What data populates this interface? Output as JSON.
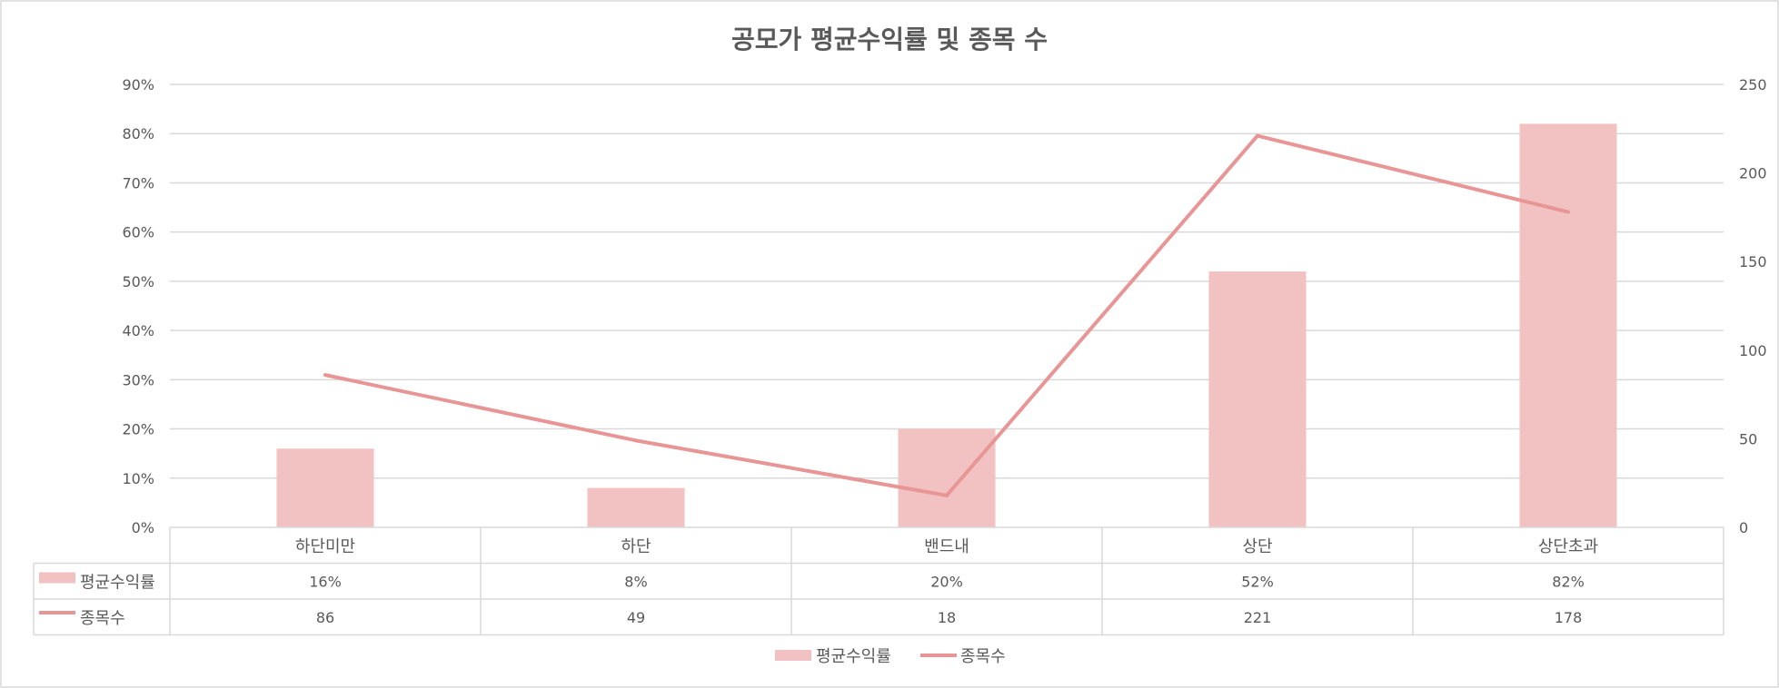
{
  "chart_data": {
    "type": "bar+line",
    "title": "공모가 평균수익률 및 종목 수",
    "categories": [
      "하단미만",
      "하단",
      "밴드내",
      "상단",
      "상단초과"
    ],
    "series": [
      {
        "name": "평균수익률",
        "kind": "bar",
        "axis": "left",
        "values": [
          0.16,
          0.08,
          0.2,
          0.52,
          0.82
        ],
        "labels": [
          "16%",
          "8%",
          "20%",
          "52%",
          "82%"
        ],
        "color": "#f2c1c1"
      },
      {
        "name": "종목수",
        "kind": "line",
        "axis": "right",
        "values": [
          86,
          49,
          18,
          221,
          178
        ],
        "labels": [
          "86",
          "49",
          "18",
          "221",
          "178"
        ],
        "color": "#e89595"
      }
    ],
    "y_left": {
      "min": 0,
      "max": 0.9,
      "step": 0.1,
      "tick_labels": [
        "0%",
        "10%",
        "20%",
        "30%",
        "40%",
        "50%",
        "60%",
        "70%",
        "80%",
        "90%"
      ]
    },
    "y_right": {
      "min": 0,
      "max": 250,
      "step": 50,
      "tick_labels": [
        "0",
        "50",
        "100",
        "150",
        "200",
        "250"
      ]
    },
    "grid": true,
    "data_table": true,
    "legend_position": "bottom",
    "colors": {
      "bar": "#f2c1c1",
      "line": "#e89595",
      "grid": "#d9d9d9",
      "text": "#595959"
    }
  }
}
